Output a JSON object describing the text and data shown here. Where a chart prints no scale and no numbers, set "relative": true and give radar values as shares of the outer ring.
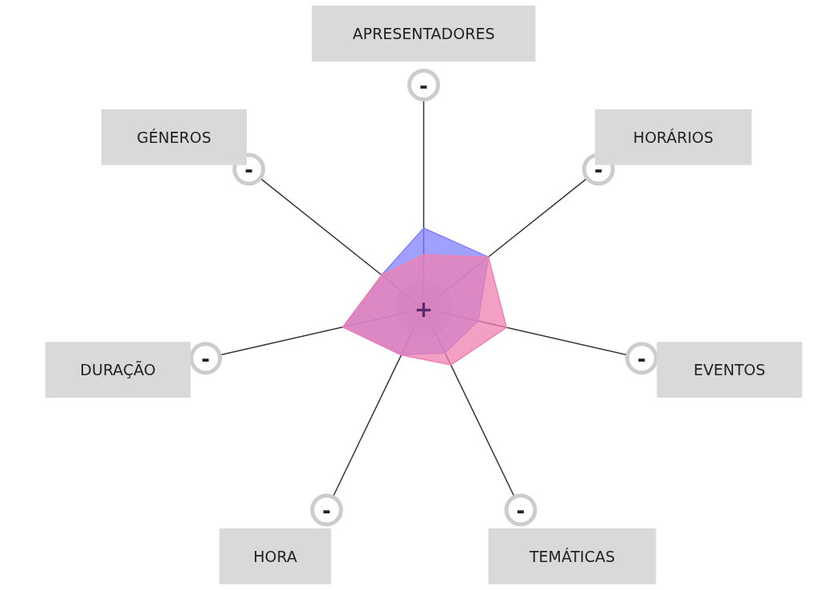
{
  "chart_data": {
    "type": "radar",
    "relative": true,
    "categories": [
      "APRESENTADORES",
      "HORÁRIOS",
      "EVENTOS",
      "TEMÁTICAS",
      "HORA",
      "DURAÇÃO",
      "GÉNEROS"
    ],
    "series": [
      {
        "color": "#8080ff",
        "values": [
          0.36,
          0.37,
          0.25,
          0.22,
          0.23,
          0.37,
          0.24
        ]
      },
      {
        "color": "#f080b0",
        "values": [
          0.24,
          0.37,
          0.38,
          0.28,
          0.23,
          0.37,
          0.24
        ]
      }
    ],
    "annotations": [
      "+",
      "-"
    ],
    "grid": false
  }
}
